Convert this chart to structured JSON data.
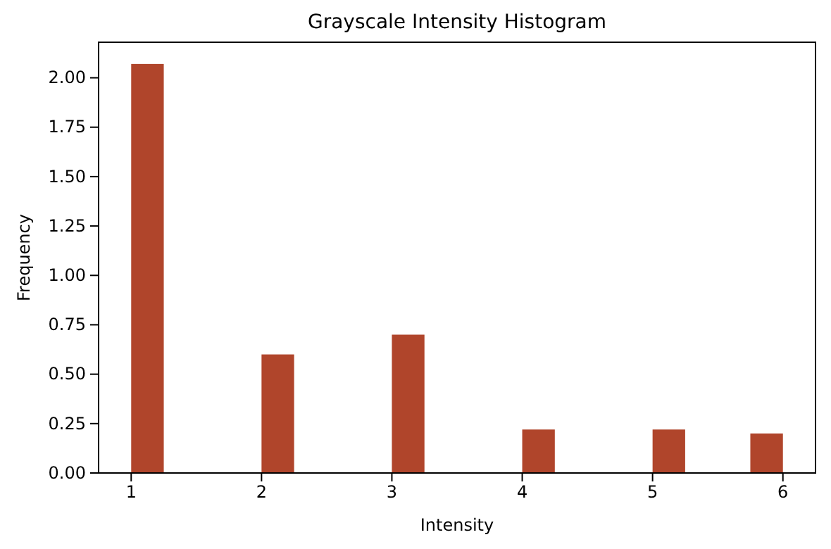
{
  "chart_data": {
    "type": "histogram",
    "title": "Grayscale Intensity Histogram",
    "xlabel": "Intensity",
    "ylabel": "Frequency",
    "bins": [
      1,
      1.25,
      1.5,
      1.75,
      2,
      2.25,
      2.5,
      2.75,
      3,
      3.25,
      3.5,
      3.75,
      4,
      4.25,
      4.5,
      4.75,
      5,
      5.25,
      5.5,
      5.75,
      6
    ],
    "values": [
      2.07,
      0,
      0,
      0,
      0.6,
      0,
      0,
      0,
      0.7,
      0,
      0,
      0,
      0.22,
      0,
      0,
      0,
      0.22,
      0,
      0,
      0.2
    ],
    "color": "#b0452b",
    "xlim": [
      0.75,
      6.25
    ],
    "ylim": [
      0,
      2.18
    ],
    "xticks": [
      1,
      2,
      3,
      4,
      5,
      6
    ],
    "yticks": [
      {
        "value": 0,
        "label": "0.00"
      },
      {
        "value": 0.25,
        "label": "0.25"
      },
      {
        "value": 0.5,
        "label": "0.50"
      },
      {
        "value": 0.75,
        "label": "0.75"
      },
      {
        "value": 1,
        "label": "1.00"
      },
      {
        "value": 1.25,
        "label": "1.25"
      },
      {
        "value": 1.5,
        "label": "1.50"
      },
      {
        "value": 1.75,
        "label": "1.75"
      },
      {
        "value": 2,
        "label": "2.00"
      }
    ],
    "grid": false
  }
}
